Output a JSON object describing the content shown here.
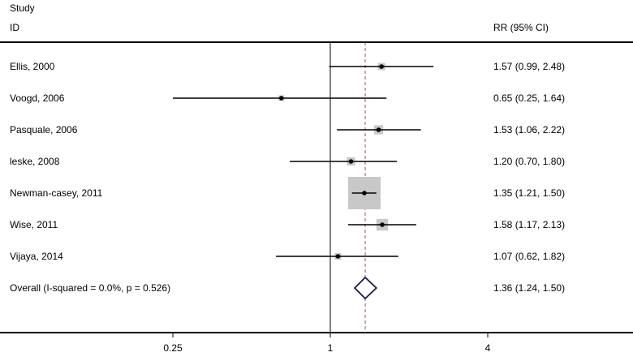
{
  "chart_data": {
    "type": "forest",
    "header": {
      "study": "Study",
      "id": "ID",
      "rr": "RR (95% CI)"
    },
    "x_scale": "log",
    "xlim": [
      0.25,
      4
    ],
    "xticks": [
      {
        "value": 0.25,
        "label": "0.25"
      },
      {
        "value": 1,
        "label": "1"
      },
      {
        "value": 4,
        "label": "4"
      }
    ],
    "reference_line": 1,
    "pooled_line": 1.36,
    "studies": [
      {
        "label": "Ellis, 2000",
        "rr": 1.57,
        "lo": 0.99,
        "hi": 2.48,
        "weight": 3.5,
        "text": "1.57 (0.99, 2.48)"
      },
      {
        "label": "Voogd, 2006",
        "rr": 0.65,
        "lo": 0.25,
        "hi": 1.64,
        "weight": 0.8,
        "text": "0.65 (0.25, 1.64)"
      },
      {
        "label": "Pasquale, 2006",
        "rr": 1.53,
        "lo": 1.06,
        "hi": 2.22,
        "weight": 5.5,
        "text": "1.53 (1.06, 2.22)"
      },
      {
        "label": "leske, 2008",
        "rr": 1.2,
        "lo": 0.7,
        "hi": 1.8,
        "weight": 4.5,
        "text": "1.20 (0.70, 1.80)"
      },
      {
        "label": "Newman-casey, 2011",
        "rr": 1.35,
        "lo": 1.21,
        "hi": 1.5,
        "weight": 70,
        "text": "1.35 (1.21, 1.50)"
      },
      {
        "label": "Wise, 2011",
        "rr": 1.58,
        "lo": 1.17,
        "hi": 2.13,
        "weight": 9,
        "text": "1.58 (1.17, 2.13)"
      },
      {
        "label": "Vijaya, 2014",
        "rr": 1.07,
        "lo": 0.62,
        "hi": 1.82,
        "weight": 3,
        "text": "1.07 (0.62, 1.82)"
      }
    ],
    "overall": {
      "label": "Overall  (I-squared = 0.0%, p = 0.526)",
      "rr": 1.36,
      "lo": 1.24,
      "hi": 1.5,
      "text": "1.36 (1.24, 1.50)"
    },
    "colors": {
      "box": "#c8c8c8",
      "line": "#000000",
      "diamond": "#1a1a4a",
      "pooled_line": "#a0506e"
    }
  }
}
